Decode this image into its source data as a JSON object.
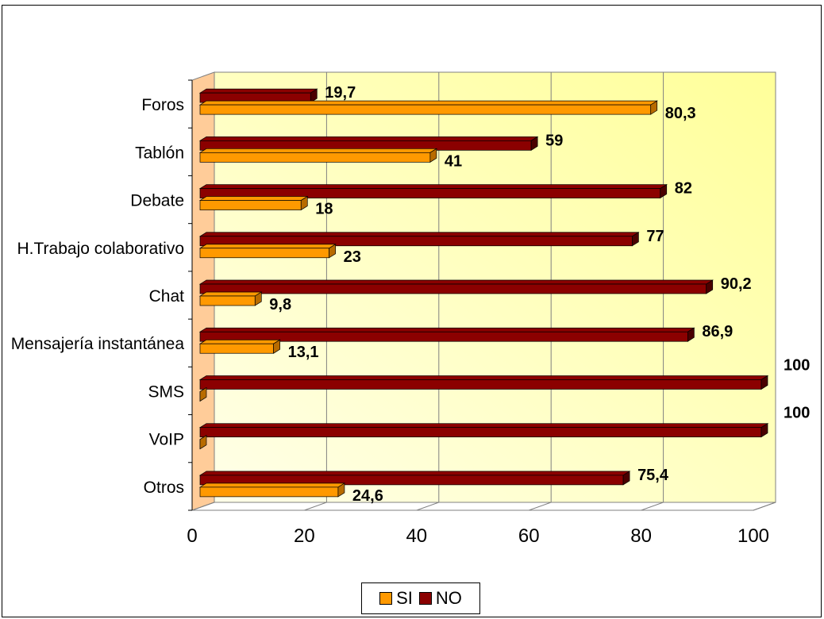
{
  "colors": {
    "si": "#ff9900",
    "si_dark": "#b86b00",
    "no": "#8b0000",
    "no_dark": "#4a0000",
    "wall_left": "#ffcc99",
    "back_wall_top": "#ffff99",
    "back_wall_bottom": "#ffffe8"
  },
  "chart_data": {
    "type": "bar",
    "orientation": "horizontal",
    "categories": [
      "Foros",
      "Tablón",
      "Debate",
      "H.Trabajo colaborativo",
      "Chat",
      "Mensajería instantánea",
      "SMS",
      "VoIP",
      "Otros"
    ],
    "series": [
      {
        "name": "SI",
        "values": [
          80.3,
          41,
          18,
          23,
          9.8,
          13.1,
          0,
          0,
          24.6
        ],
        "labels": [
          "80,3",
          "41",
          "18",
          "23",
          "9,8",
          "13,1",
          "",
          "",
          "24,6"
        ]
      },
      {
        "name": "NO",
        "values": [
          19.7,
          59,
          82,
          77,
          90.2,
          86.9,
          100,
          100,
          75.4
        ],
        "labels": [
          "19,7",
          "59",
          "82",
          "77",
          "90,2",
          "86,9",
          "100",
          "100",
          "75,4"
        ]
      }
    ],
    "xlim": [
      0,
      100
    ],
    "xticks": [
      "0",
      "20",
      "40",
      "60",
      "80",
      "100"
    ],
    "grid": true,
    "legend_position": "bottom"
  }
}
